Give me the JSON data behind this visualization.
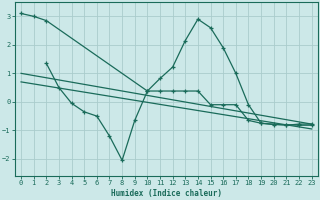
{
  "title": "",
  "xlabel": "Humidex (Indice chaleur)",
  "background_color": "#cce8e8",
  "grid_color": "#aacccc",
  "line_color": "#1a6b5a",
  "xlim": [
    -0.5,
    23.5
  ],
  "ylim": [
    -2.6,
    3.5
  ],
  "yticks": [
    -2,
    -1,
    0,
    1,
    2,
    3
  ],
  "xtick_labels": [
    "0",
    "1",
    "2",
    "3",
    "4",
    "5",
    "6",
    "7",
    "8",
    "9",
    "10",
    "11",
    "12",
    "13",
    "14",
    "15",
    "16",
    "17",
    "18",
    "19",
    "20",
    "21",
    "22",
    "23"
  ],
  "xtick_pos": [
    0,
    1,
    2,
    3,
    4,
    5,
    6,
    7,
    8,
    9,
    10,
    11,
    12,
    13,
    14,
    15,
    16,
    17,
    18,
    19,
    20,
    21,
    22,
    23
  ],
  "series1_x": [
    0,
    1,
    2,
    10,
    11,
    12,
    13,
    14,
    15,
    16,
    17,
    18,
    19,
    20,
    21,
    22,
    23
  ],
  "series1_y": [
    3.1,
    3.0,
    2.85,
    0.38,
    0.82,
    1.22,
    2.15,
    2.9,
    2.6,
    1.9,
    1.0,
    -0.1,
    -0.75,
    -0.78,
    -0.82,
    -0.78,
    -0.78
  ],
  "series2_x": [
    2,
    3,
    4,
    5,
    6,
    7,
    8,
    9,
    10,
    11,
    12,
    13,
    14,
    15,
    16,
    17,
    18,
    19,
    20,
    21,
    22,
    23
  ],
  "series2_y": [
    1.35,
    0.5,
    -0.05,
    -0.35,
    -0.5,
    -1.2,
    -2.05,
    -0.65,
    0.38,
    0.38,
    0.38,
    0.38,
    0.38,
    -0.1,
    -0.1,
    -0.1,
    -0.65,
    -0.75,
    -0.8,
    -0.8,
    -0.82,
    -0.82
  ],
  "series3_x": [
    0,
    23
  ],
  "series3_y": [
    1.0,
    -0.78
  ],
  "series4_x": [
    0,
    23
  ],
  "series4_y": [
    0.7,
    -0.95
  ]
}
